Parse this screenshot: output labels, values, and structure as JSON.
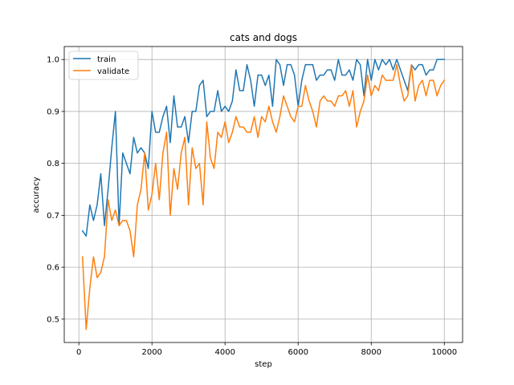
{
  "chart_data": {
    "type": "line",
    "title": "cats and dogs",
    "xlabel": "step",
    "ylabel": "accuracy",
    "xlim": [
      -400,
      10500
    ],
    "ylim": [
      0.455,
      1.025
    ],
    "xticks": [
      0,
      2000,
      4000,
      6000,
      8000,
      10000
    ],
    "yticks": [
      0.5,
      0.6,
      0.7,
      0.8,
      0.9,
      1.0
    ],
    "xtick_labels": [
      "0",
      "2000",
      "4000",
      "6000",
      "8000",
      "10000"
    ],
    "ytick_labels": [
      "0.5",
      "0.6",
      "0.7",
      "0.8",
      "0.9",
      "1.0"
    ],
    "grid": true,
    "legend_position": "upper-left",
    "x": [
      100,
      200,
      300,
      400,
      500,
      600,
      700,
      800,
      900,
      1000,
      1100,
      1200,
      1300,
      1400,
      1500,
      1600,
      1700,
      1800,
      1900,
      2000,
      2100,
      2200,
      2300,
      2400,
      2500,
      2600,
      2700,
      2800,
      2900,
      3000,
      3100,
      3200,
      3300,
      3400,
      3500,
      3600,
      3700,
      3800,
      3900,
      4000,
      4100,
      4200,
      4300,
      4400,
      4500,
      4600,
      4700,
      4800,
      4900,
      5000,
      5100,
      5200,
      5300,
      5400,
      5500,
      5600,
      5700,
      5800,
      5900,
      6000,
      6100,
      6200,
      6300,
      6400,
      6500,
      6600,
      6700,
      6800,
      6900,
      7000,
      7100,
      7200,
      7300,
      7400,
      7500,
      7600,
      7700,
      7800,
      7900,
      8000,
      8100,
      8200,
      8300,
      8400,
      8500,
      8600,
      8700,
      8800,
      8900,
      9000,
      9100,
      9200,
      9300,
      9400,
      9500,
      9600,
      9700,
      9800,
      9900,
      10000
    ],
    "series": [
      {
        "name": "train",
        "color": "#1f77b4",
        "values": [
          0.67,
          0.66,
          0.72,
          0.69,
          0.72,
          0.78,
          0.68,
          0.75,
          0.83,
          0.9,
          0.68,
          0.82,
          0.8,
          0.78,
          0.85,
          0.82,
          0.83,
          0.82,
          0.79,
          0.9,
          0.86,
          0.86,
          0.89,
          0.91,
          0.84,
          0.93,
          0.87,
          0.87,
          0.89,
          0.84,
          0.9,
          0.9,
          0.95,
          0.96,
          0.89,
          0.9,
          0.9,
          0.94,
          0.9,
          0.91,
          0.9,
          0.92,
          0.98,
          0.94,
          0.94,
          0.99,
          0.96,
          0.91,
          0.97,
          0.97,
          0.95,
          0.97,
          0.91,
          1.0,
          0.99,
          0.95,
          0.99,
          0.99,
          0.97,
          0.91,
          0.96,
          0.99,
          0.99,
          0.99,
          0.96,
          0.97,
          0.97,
          0.98,
          0.98,
          0.96,
          1.0,
          0.97,
          0.97,
          0.98,
          0.96,
          1.0,
          0.99,
          0.93,
          1.0,
          0.96,
          1.0,
          0.98,
          1.0,
          0.99,
          1.0,
          0.98,
          1.0,
          0.98,
          0.96,
          0.94,
          0.99,
          0.98,
          0.99,
          0.99,
          0.97,
          0.98,
          0.98,
          1.0,
          1.0,
          1.0
        ]
      },
      {
        "name": "validate",
        "color": "#ff7f0e",
        "values": [
          0.62,
          0.48,
          0.56,
          0.62,
          0.58,
          0.59,
          0.62,
          0.73,
          0.69,
          0.71,
          0.68,
          0.69,
          0.69,
          0.67,
          0.62,
          0.72,
          0.75,
          0.82,
          0.71,
          0.74,
          0.8,
          0.73,
          0.82,
          0.86,
          0.7,
          0.79,
          0.75,
          0.82,
          0.85,
          0.72,
          0.83,
          0.79,
          0.8,
          0.72,
          0.88,
          0.81,
          0.79,
          0.86,
          0.85,
          0.88,
          0.84,
          0.86,
          0.89,
          0.87,
          0.87,
          0.86,
          0.86,
          0.89,
          0.85,
          0.89,
          0.88,
          0.91,
          0.88,
          0.86,
          0.89,
          0.93,
          0.91,
          0.89,
          0.88,
          0.91,
          0.91,
          0.95,
          0.92,
          0.9,
          0.87,
          0.92,
          0.93,
          0.92,
          0.92,
          0.91,
          0.93,
          0.93,
          0.94,
          0.91,
          0.94,
          0.87,
          0.9,
          0.92,
          0.97,
          0.93,
          0.95,
          0.94,
          0.97,
          0.96,
          0.96,
          0.96,
          0.99,
          0.95,
          0.92,
          0.93,
          0.99,
          0.92,
          0.95,
          0.96,
          0.93,
          0.96,
          0.96,
          0.93,
          0.95,
          0.96
        ]
      }
    ]
  }
}
